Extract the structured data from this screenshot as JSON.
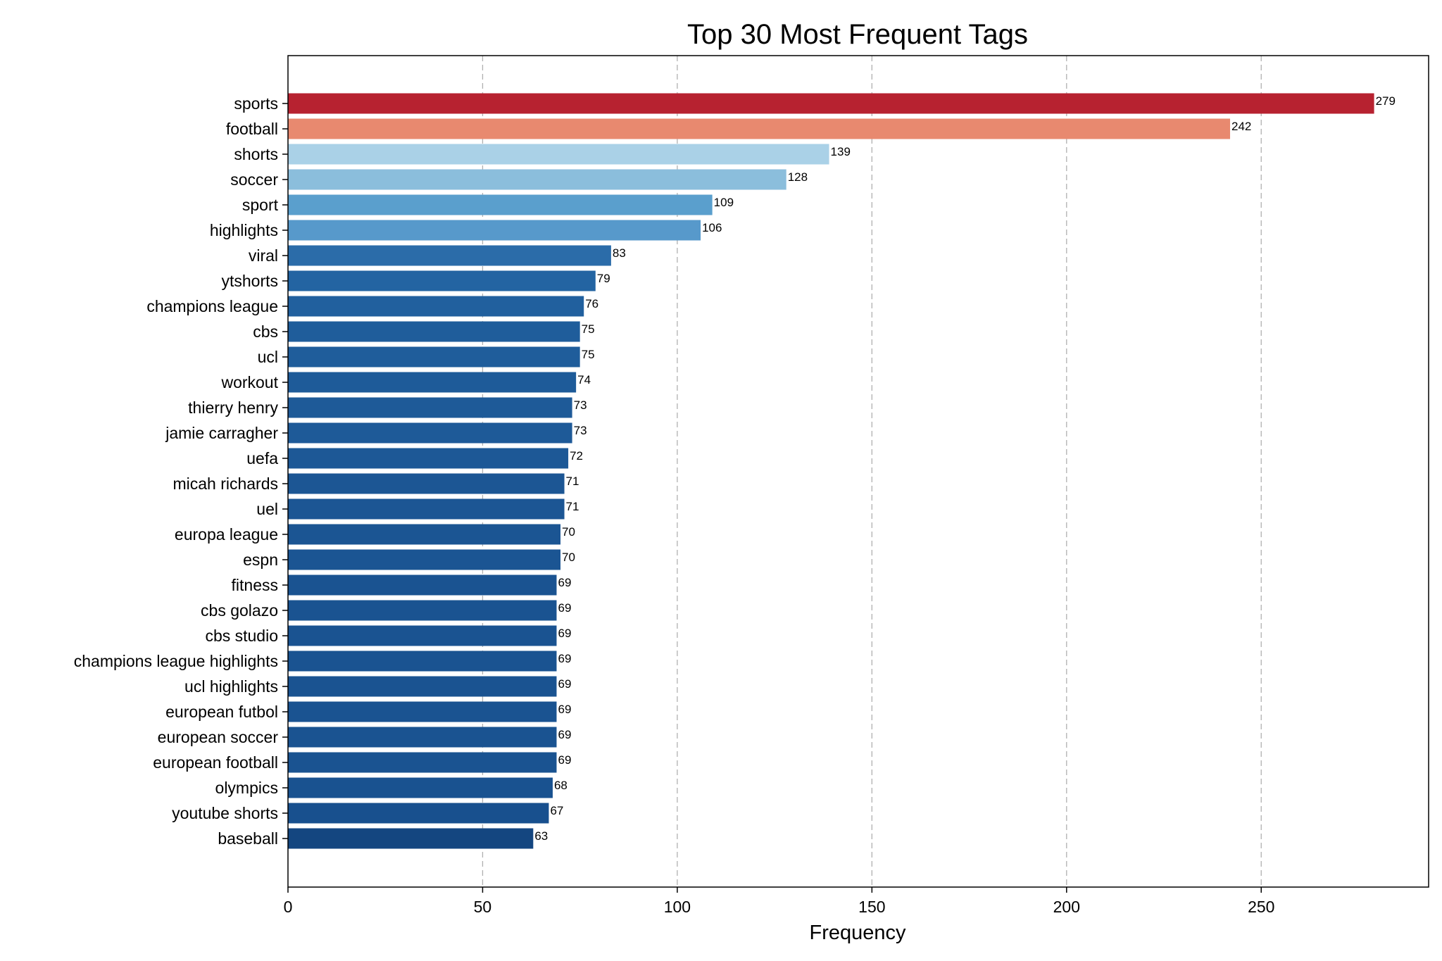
{
  "chart_data": {
    "type": "bar",
    "orientation": "horizontal",
    "title": "Top 30 Most Frequent Tags",
    "xlabel": "Frequency",
    "ylabel": "",
    "xlim": [
      0,
      293
    ],
    "xticks": [
      0,
      50,
      100,
      150,
      200,
      250
    ],
    "grid": "x-axis dashed",
    "categories": [
      "sports",
      "football",
      "shorts",
      "soccer",
      "sport",
      "highlights",
      "viral",
      "ytshorts",
      "champions league",
      "cbs",
      "ucl",
      "workout",
      "thierry henry",
      "jamie carragher",
      "uefa",
      "micah richards",
      "uel",
      "europa league",
      "espn",
      "fitness",
      "cbs golazo",
      "cbs studio",
      "champions league highlights",
      "ucl highlights",
      "european futbol",
      "european soccer",
      "european football",
      "olympics",
      "youtube shorts",
      "baseball"
    ],
    "values": [
      279,
      242,
      139,
      128,
      109,
      106,
      83,
      79,
      76,
      75,
      75,
      74,
      73,
      73,
      72,
      71,
      71,
      70,
      70,
      69,
      69,
      69,
      69,
      69,
      69,
      69,
      69,
      68,
      67,
      63
    ],
    "colors": [
      "#b72230",
      "#e8896f",
      "#aad1e7",
      "#8bbedc",
      "#5a9fcd",
      "#5799cb",
      "#2b6ca9",
      "#2364a2",
      "#21609e",
      "#1f5d9b",
      "#1f5d9b",
      "#1e5b99",
      "#1e5a98",
      "#1e5a98",
      "#1d5896",
      "#1c5694",
      "#1c5694",
      "#1b5593",
      "#1b5593",
      "#1a5391",
      "#1a5391",
      "#1a5391",
      "#1a5391",
      "#1a5391",
      "#1a5391",
      "#1a5391",
      "#1a5391",
      "#195290",
      "#18508e",
      "#144680"
    ]
  }
}
